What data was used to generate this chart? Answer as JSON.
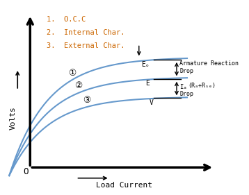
{
  "legend_items": [
    "1.  O.C.C",
    "2.  Internal Char.",
    "3.  External Char."
  ],
  "curve_color": "#6699cc",
  "text_color": "#cc6600",
  "curve1_label": "①",
  "curve2_label": "②",
  "curve3_label": "③",
  "label_Eo": "Eₒ",
  "label_E": "E",
  "label_V": "V",
  "label_arm1": "Armature Reaction",
  "label_arm2": "Drop",
  "label_Ia": "Iₐ",
  "label_RaRse": "(Rₐ+Rₛₑ)",
  "label_drop": "Drop",
  "ylabel": "Volts",
  "xlabel": "Load Current",
  "origin": "O",
  "background_color": "#ffffff"
}
